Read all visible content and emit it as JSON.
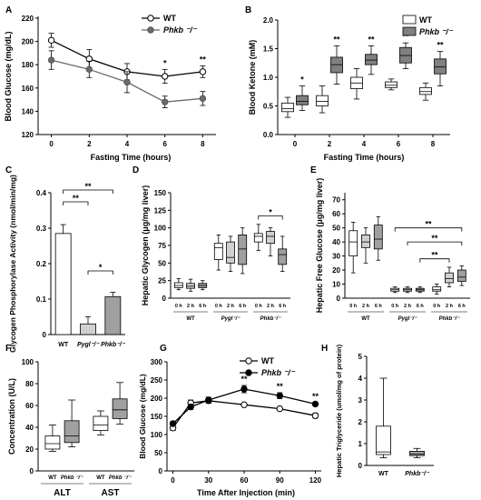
{
  "chart_data": [
    {
      "panel": "A",
      "type": "line",
      "xlabel": "Fasting Time (hours)",
      "ylabel": "Blood Glucose (mg/dL)",
      "xlim": [
        0,
        8
      ],
      "ylim": [
        120,
        220
      ],
      "xticks": [
        "0",
        "2",
        "4",
        "6",
        "8"
      ],
      "yticks": [
        "120",
        "140",
        "160",
        "180",
        "200",
        "220"
      ],
      "x": [
        0,
        2,
        4,
        6,
        8
      ],
      "series": [
        {
          "name": "WT",
          "values": [
            201,
            185,
            174,
            170,
            174
          ],
          "err": [
            6,
            8,
            7,
            6,
            5
          ],
          "color": "#ffffff"
        },
        {
          "name": "Phkb ⁻/⁻",
          "values": [
            184,
            176,
            165,
            148,
            151
          ],
          "err": [
            8,
            7,
            9,
            5,
            6
          ],
          "color": "#6b6b6b"
        }
      ],
      "annotations": [
        {
          "x": 6,
          "text": "*"
        },
        {
          "x": 8,
          "text": "**"
        }
      ]
    },
    {
      "panel": "B",
      "type": "box",
      "xlabel": "Fasting Time (hours)",
      "ylabel": "Blood Ketone (mM)",
      "ylim": [
        0,
        2.0
      ],
      "yticks": [
        "0.0",
        "0.5",
        "1.0",
        "1.5",
        "2.0"
      ],
      "categories": [
        "0",
        "2",
        "4",
        "6",
        "8"
      ],
      "series": [
        {
          "name": "WT",
          "color": "#ffffff",
          "boxes": [
            [
              0.3,
              0.4,
              0.45,
              0.55,
              0.65
            ],
            [
              0.38,
              0.5,
              0.58,
              0.68,
              0.85
            ],
            [
              0.62,
              0.8,
              0.9,
              1.0,
              1.15
            ],
            [
              0.78,
              0.82,
              0.86,
              0.92,
              0.97
            ],
            [
              0.6,
              0.7,
              0.75,
              0.82,
              0.9
            ]
          ]
        },
        {
          "name": "Phkb ⁻/⁻",
          "color": "#808080",
          "boxes": [
            [
              0.42,
              0.52,
              0.58,
              0.68,
              0.85
            ],
            [
              0.88,
              1.08,
              1.22,
              1.35,
              1.55
            ],
            [
              1.05,
              1.22,
              1.3,
              1.4,
              1.55
            ],
            [
              1.15,
              1.25,
              1.38,
              1.52,
              1.6
            ],
            [
              0.85,
              1.06,
              1.18,
              1.32,
              1.45
            ]
          ]
        }
      ],
      "annotations": [
        {
          "x": "0",
          "text": "*"
        },
        {
          "x": "2",
          "text": "**"
        },
        {
          "x": "4",
          "text": "**"
        },
        {
          "x": "6",
          "text": "**"
        },
        {
          "x": "8",
          "text": "**"
        }
      ]
    },
    {
      "panel": "C",
      "type": "bar",
      "ylabel": "Glycogen Phosphorylase Activity (nmol/min/mg)",
      "ylim": [
        0,
        0.4
      ],
      "yticks": [
        "0",
        "0.1",
        "0.2",
        "0.3",
        "0.4"
      ],
      "categories": [
        "WT",
        "Pygl⁻/⁻",
        "Phkb⁻/⁻"
      ],
      "values": [
        0.285,
        0.03,
        0.107
      ],
      "err": [
        0.025,
        0.02,
        0.012
      ],
      "colors": [
        "#ffffff",
        "#d0d0d0",
        "#a0a0a0"
      ],
      "annotations": [
        {
          "from": "WT",
          "to": "Pygl⁻/⁻",
          "text": "**"
        },
        {
          "from": "WT",
          "to": "Phkb⁻/⁻",
          "text": "**"
        },
        {
          "from": "Pygl⁻/⁻",
          "to": "Phkb⁻/⁻",
          "text": "*"
        }
      ]
    },
    {
      "panel": "D",
      "type": "box",
      "ylabel": "Hepatic Glycogen (μg/mg liver)",
      "ylim": [
        0,
        150
      ],
      "yticks": [
        "0",
        "25",
        "50",
        "75",
        "100",
        "125",
        "150"
      ],
      "groups": [
        "WT",
        "Pygl⁻/⁻",
        "Phkb⁻/⁻"
      ],
      "subcategories": [
        "0 h",
        "2 h",
        "6 h"
      ],
      "boxes": [
        [
          [
            12,
            15,
            18,
            22,
            28
          ],
          [
            10,
            14,
            17,
            21,
            27
          ],
          [
            12,
            15,
            18,
            21,
            25
          ]
        ],
        [
          [
            40,
            55,
            72,
            78,
            90
          ],
          [
            38,
            50,
            58,
            80,
            88
          ],
          [
            35,
            48,
            70,
            90,
            100
          ]
        ],
        [
          [
            68,
            80,
            88,
            92,
            105
          ],
          [
            60,
            78,
            88,
            95,
            100
          ],
          [
            38,
            48,
            62,
            70,
            88
          ]
        ]
      ],
      "colors": [
        "#ffffff",
        "#d0d0d0",
        "#a0a0a0"
      ],
      "annotations": [
        {
          "group": "Phkb⁻/⁻",
          "from": "0 h",
          "to": "6 h",
          "text": "*"
        }
      ]
    },
    {
      "panel": "E",
      "type": "box",
      "ylabel": "Hepatic Free Glucose (μg/mg liver)",
      "ylim": [
        0,
        75
      ],
      "yticks": [
        "0",
        "10",
        "20",
        "30",
        "40",
        "50",
        "60",
        "70"
      ],
      "groups": [
        "WT",
        "Pygl⁻/⁻",
        "Phkb⁻/⁻"
      ],
      "subcategories": [
        "0 h",
        "2 h",
        "6 h"
      ],
      "boxes": [
        [
          [
            18,
            30,
            40,
            48,
            54
          ],
          [
            25,
            36,
            40,
            45,
            50
          ],
          [
            27,
            35,
            42,
            52,
            58
          ]
        ],
        [
          [
            4,
            5,
            6,
            7,
            8
          ],
          [
            4,
            5,
            6,
            7,
            8
          ],
          [
            4,
            5,
            6,
            7,
            8
          ]
        ],
        [
          [
            3,
            5,
            6,
            8,
            10
          ],
          [
            8,
            11,
            14,
            18,
            22
          ],
          [
            9,
            12,
            15,
            20,
            23
          ]
        ]
      ],
      "colors": [
        "#ffffff",
        "#d0d0d0",
        "#a0a0a0"
      ],
      "annotations": [
        {
          "text": "**"
        },
        {
          "text": "**"
        },
        {
          "text": "**"
        }
      ]
    },
    {
      "panel": "F",
      "type": "box",
      "ylabel": "Concentration (U/L)",
      "ylim": [
        0,
        100
      ],
      "yticks": [
        "0",
        "20",
        "40",
        "60",
        "80",
        "100"
      ],
      "groups": [
        "ALT",
        "AST"
      ],
      "subcategories": [
        "WT",
        "Phkb ⁻/⁻"
      ],
      "boxes": [
        [
          [
            18,
            20,
            25,
            32,
            42
          ],
          [
            22,
            26,
            32,
            46,
            65
          ]
        ],
        [
          [
            33,
            37,
            42,
            50,
            55
          ],
          [
            43,
            48,
            56,
            66,
            81
          ]
        ]
      ],
      "colors": [
        "#ffffff",
        "#a0a0a0"
      ]
    },
    {
      "panel": "G",
      "type": "line",
      "xlabel": "Time After Injection (min)",
      "ylabel": "Blood Glucose (mg/dL)",
      "xlim": [
        0,
        120
      ],
      "ylim": [
        0,
        300
      ],
      "xticks": [
        "0",
        "30",
        "60",
        "90",
        "120"
      ],
      "yticks": [
        "0",
        "50",
        "100",
        "150",
        "200",
        "250",
        "300"
      ],
      "x": [
        0,
        15,
        30,
        60,
        90,
        120
      ],
      "series": [
        {
          "name": "WT",
          "values": [
            118,
            187,
            193,
            182,
            171,
            152
          ],
          "err": [
            7,
            8,
            7,
            5,
            4,
            7
          ],
          "color": "#ffffff"
        },
        {
          "name": "Phkb ⁻/⁻",
          "values": [
            130,
            176,
            195,
            225,
            207,
            184
          ],
          "err": [
            6,
            7,
            8,
            10,
            8,
            4
          ],
          "color": "#000000"
        }
      ],
      "annotations": [
        {
          "x": 60,
          "text": "**"
        },
        {
          "x": 90,
          "text": "**"
        },
        {
          "x": 120,
          "text": "**"
        }
      ]
    },
    {
      "panel": "H",
      "type": "box",
      "ylabel": "Hepatic Triglyceride (umol/mg of protein)",
      "ylim": [
        0,
        5
      ],
      "yticks": [
        "0",
        "1",
        "2",
        "3",
        "4",
        "5"
      ],
      "categories": [
        "WT",
        "Phkb⁻/⁻"
      ],
      "boxes": [
        [
          0.35,
          0.5,
          0.62,
          1.8,
          4.0
        ],
        [
          0.35,
          0.45,
          0.52,
          0.65,
          0.78
        ]
      ],
      "colors": [
        "#ffffff",
        "#a0a0a0"
      ]
    }
  ],
  "panel_letters": [
    "A",
    "B",
    "C",
    "D",
    "E",
    "F",
    "G",
    "H"
  ]
}
